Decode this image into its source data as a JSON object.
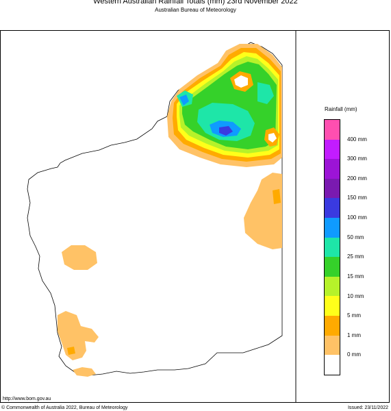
{
  "header": {
    "title": "Western Australian Rainfall Totals (mm) 23rd November 2022",
    "subtitle": "Australian Bureau of Meteorology"
  },
  "legend": {
    "title": "Rainfall (mm)",
    "bands_top_to_bottom": [
      {
        "color": "#ff4fb0"
      },
      {
        "color": "#c21cff"
      },
      {
        "color": "#9c14d6"
      },
      {
        "color": "#7a1ab0"
      },
      {
        "color": "#3a3ae0"
      },
      {
        "color": "#0f9bff"
      },
      {
        "color": "#1ee6a8"
      },
      {
        "color": "#35d12a"
      },
      {
        "color": "#b6f22a"
      },
      {
        "color": "#ffff1a"
      },
      {
        "color": "#ffaa00"
      },
      {
        "color": "#ffc266"
      },
      {
        "color": "#ffffff"
      }
    ],
    "labels": [
      "400 mm",
      "300 mm",
      "200 mm",
      "150 mm",
      "100 mm",
      "50 mm",
      "25 mm",
      "15 mm",
      "10 mm",
      "5 mm",
      "1 mm",
      "0 mm"
    ]
  },
  "footer": {
    "url": "http://www.bom.gov.au",
    "copyright": "© Commonwealth of Australia 2022, Bureau of Meteorology",
    "issued": "Issued: 23/11/2022"
  }
}
